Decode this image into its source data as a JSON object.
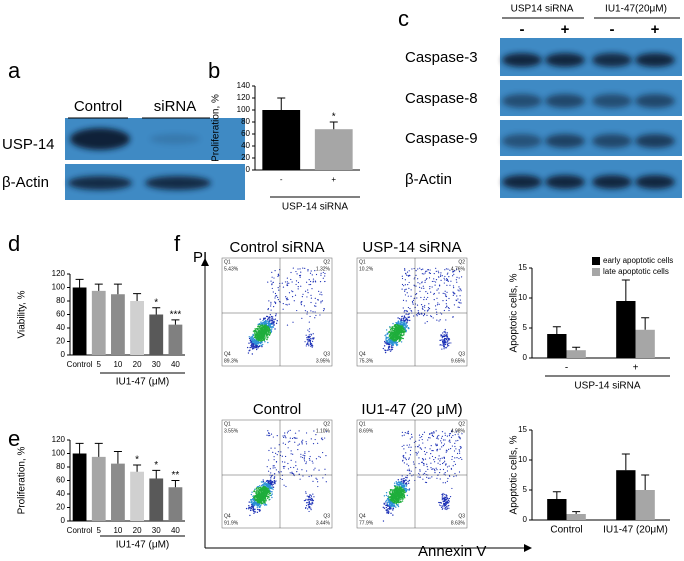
{
  "panel_letters": [
    "a",
    "b",
    "c",
    "d",
    "e",
    "f"
  ],
  "blot_a": {
    "lanes": [
      "Control",
      "siRNA"
    ],
    "rows": [
      "USP-14",
      "β-Actin"
    ]
  },
  "blot_c": {
    "groups": [
      "USP14 siRNA",
      "IU1-47(20μM)"
    ],
    "lanes": [
      "-",
      "+",
      "-",
      "+"
    ],
    "rows": [
      "Caspase-3",
      "Caspase-8",
      "Caspase-9",
      "β-Actin"
    ]
  },
  "flow_cytometry": {
    "y_axis": "PI",
    "x_axis": "Annexin V",
    "panels": [
      {
        "title": "Control siRNA",
        "quadrants": [
          {
            "name": "Q1",
            "percent": "5.43%"
          },
          {
            "name": "Q2",
            "percent": "1.32%"
          },
          {
            "name": "Q3",
            "percent": "3.95%"
          },
          {
            "name": "Q4",
            "percent": "89.3%"
          }
        ]
      },
      {
        "title": "USP-14 siRNA",
        "quadrants": [
          {
            "name": "Q1",
            "percent": "10.2%"
          },
          {
            "name": "Q2",
            "percent": "4.76%"
          },
          {
            "name": "Q3",
            "percent": "9.65%"
          },
          {
            "name": "Q4",
            "percent": "75.3%"
          }
        ]
      },
      {
        "title": "Control",
        "quadrants": [
          {
            "name": "Q1",
            "percent": "3.55%"
          },
          {
            "name": "Q2",
            "percent": "1.10%"
          },
          {
            "name": "Q3",
            "percent": "3.44%"
          },
          {
            "name": "Q4",
            "percent": "91.9%"
          }
        ]
      },
      {
        "title": "IU1-47 (20 μM)",
        "quadrants": [
          {
            "name": "Q1",
            "percent": "8.69%"
          },
          {
            "name": "Q2",
            "percent": "4.98%"
          },
          {
            "name": "Q3",
            "percent": "8.63%"
          },
          {
            "name": "Q4",
            "percent": "77.9%"
          }
        ]
      }
    ]
  },
  "chart_data": [
    {
      "type": "bar",
      "y_label": "Proliferation, %",
      "x_label": "USP-14 siRNA",
      "categories": [
        "-",
        "+"
      ],
      "values": [
        100,
        68
      ],
      "errors": [
        20,
        12
      ],
      "colors": [
        "#000000",
        "#a6a6a6"
      ],
      "significance": [
        null,
        "*"
      ],
      "ylim": [
        0,
        140
      ],
      "yticks": [
        0,
        20,
        40,
        60,
        80,
        100,
        120,
        140
      ]
    },
    {
      "type": "bar",
      "y_label": "Viability, %",
      "x_label": "IU1-47 (μM)",
      "categories": [
        "Control",
        "5",
        "10",
        "20",
        "30",
        "40"
      ],
      "values": [
        100,
        95,
        90,
        80,
        60,
        45
      ],
      "errors": [
        12,
        10,
        15,
        11,
        10,
        7
      ],
      "colors": [
        "#000000",
        "#a6a6a6",
        "#8c8c8c",
        "#d0d0d0",
        "#595959",
        "#808080"
      ],
      "significance": [
        null,
        null,
        null,
        null,
        "*",
        "***"
      ],
      "ylim": [
        0,
        120
      ],
      "yticks": [
        0,
        20,
        40,
        60,
        80,
        100,
        120
      ]
    },
    {
      "type": "bar",
      "y_label": "Proliferation, %",
      "x_label": "IU1-47 (μM)",
      "categories": [
        "Control",
        "5",
        "10",
        "20",
        "30",
        "40"
      ],
      "values": [
        100,
        95,
        85,
        73,
        63,
        50
      ],
      "errors": [
        15,
        20,
        18,
        10,
        12,
        10
      ],
      "colors": [
        "#000000",
        "#a6a6a6",
        "#8c8c8c",
        "#d0d0d0",
        "#595959",
        "#808080"
      ],
      "significance": [
        null,
        null,
        null,
        "*",
        "*",
        "**"
      ],
      "ylim": [
        0,
        120
      ],
      "yticks": [
        0,
        20,
        40,
        60,
        80,
        100,
        120
      ]
    },
    {
      "type": "grouped_bar",
      "y_label": "Apoptotic cells, %",
      "x_label": "USP-14 siRNA",
      "categories": [
        "-",
        "+"
      ],
      "series": [
        {
          "name": "early apoptotic cells",
          "color": "#000000",
          "values": [
            4,
            9.5
          ],
          "errors": [
            1.2,
            3.5
          ]
        },
        {
          "name": "late apoptotic cells",
          "color": "#a6a6a6",
          "values": [
            1.3,
            4.7
          ],
          "errors": [
            0.5,
            2
          ]
        }
      ],
      "ylim": [
        0,
        15
      ],
      "yticks": [
        0,
        5,
        10,
        15
      ]
    },
    {
      "type": "grouped_bar",
      "y_label": "Apoptotic cells, %",
      "categories": [
        "Control",
        "IU1-47 (20μM)"
      ],
      "series": [
        {
          "name": "early apoptotic cells",
          "color": "#000000",
          "values": [
            3.5,
            8.3
          ],
          "errors": [
            1.2,
            2.7
          ]
        },
        {
          "name": "late apoptotic cells",
          "color": "#a6a6a6",
          "values": [
            1,
            5
          ],
          "errors": [
            0.4,
            2.5
          ]
        }
      ],
      "ylim": [
        0,
        15
      ],
      "yticks": [
        0,
        5,
        10,
        15
      ]
    }
  ]
}
